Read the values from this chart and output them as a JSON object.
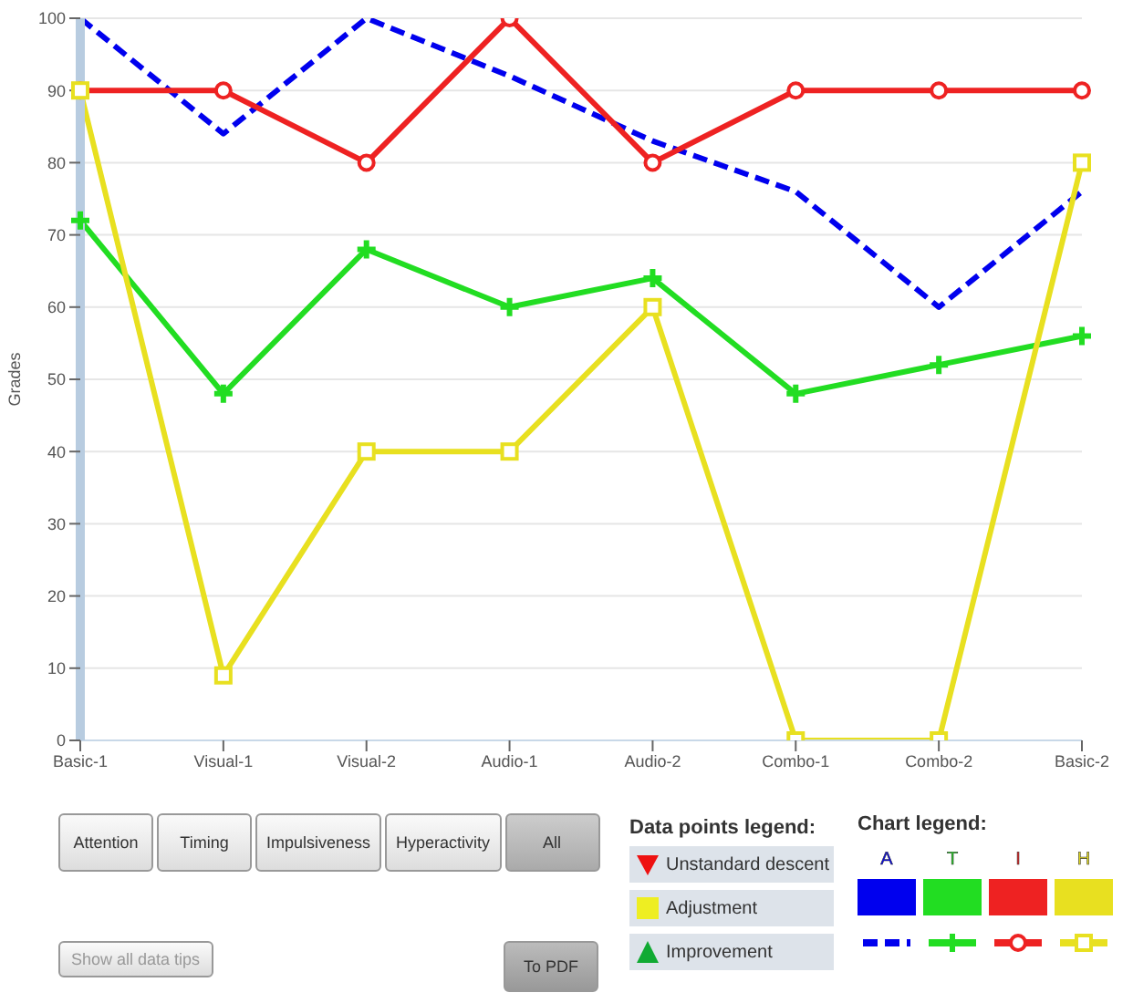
{
  "chart_data": {
    "type": "line",
    "ylabel": "Grades",
    "categories": [
      "Basic-1",
      "Visual-1",
      "Visual-2",
      "Audio-1",
      "Audio-2",
      "Combo-1",
      "Combo-2",
      "Basic-2"
    ],
    "series": [
      {
        "name": "A",
        "color": "#0000ee",
        "values": [
          100,
          84,
          100,
          92,
          83,
          76,
          60,
          76
        ],
        "marker": "none",
        "line_style": "dashed"
      },
      {
        "name": "T",
        "color": "#22dd22",
        "values": [
          72,
          48,
          68,
          60,
          64,
          48,
          52,
          56
        ],
        "marker": "cross",
        "line_style": "solid"
      },
      {
        "name": "I",
        "color": "#ee2222",
        "values": [
          90,
          90,
          80,
          100,
          80,
          90,
          90,
          90
        ],
        "marker": "circle",
        "line_style": "solid"
      },
      {
        "name": "H",
        "color": "#e8e020",
        "values": [
          90,
          9,
          40,
          40,
          60,
          0,
          0,
          80
        ],
        "marker": "square",
        "line_style": "solid"
      }
    ],
    "ylim": [
      0,
      100
    ],
    "yticks": [
      0,
      10,
      20,
      30,
      40,
      50,
      60,
      70,
      80,
      90,
      100
    ],
    "grid": "y",
    "legend": "bottom right",
    "legend_title": "Chart legend:",
    "annotations": [
      "Attention",
      "Timing",
      "Impulsiveness",
      "Hyperactivity",
      "All",
      "Show all data tips",
      "To PDF",
      "Data points legend:",
      "Unstandard descent",
      "Adjustment",
      "Improvement"
    ]
  }
}
